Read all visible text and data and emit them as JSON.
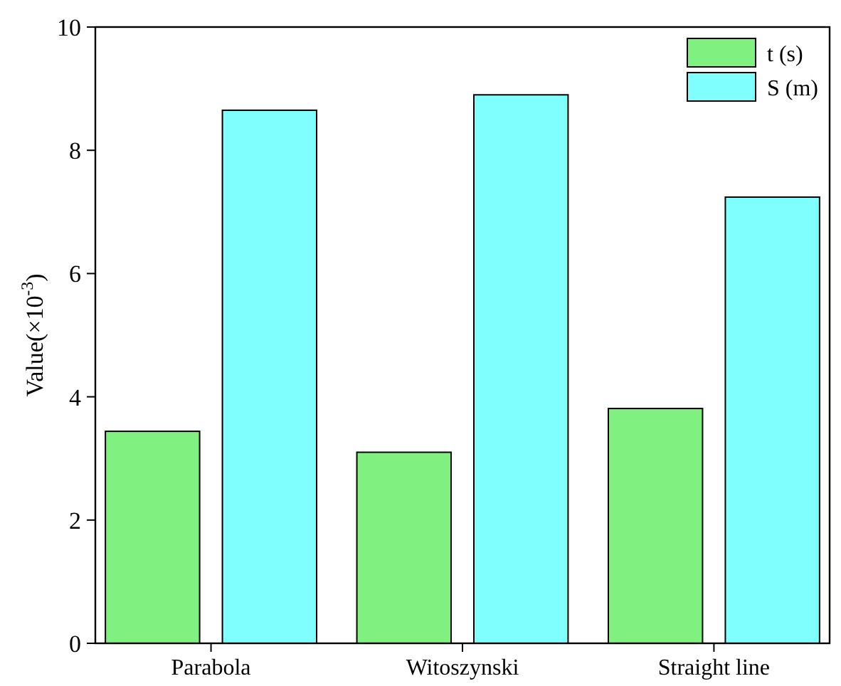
{
  "chart_data": {
    "type": "bar",
    "ylabel": "Value(×10$^{-3}$)",
    "categories": [
      "Parabola",
      "Witoszynski",
      "Straight line"
    ],
    "series": [
      {
        "name": "t (s)",
        "color": "#80f080",
        "values": [
          3.44,
          3.1,
          3.81
        ]
      },
      {
        "name": "S (m)",
        "color": "#80ffff",
        "values": [
          8.65,
          8.9,
          7.24
        ]
      }
    ],
    "ylim": [
      0,
      10
    ],
    "yticks": [
      0,
      2,
      4,
      6,
      8,
      10
    ],
    "grid": false,
    "legend": "top right"
  }
}
